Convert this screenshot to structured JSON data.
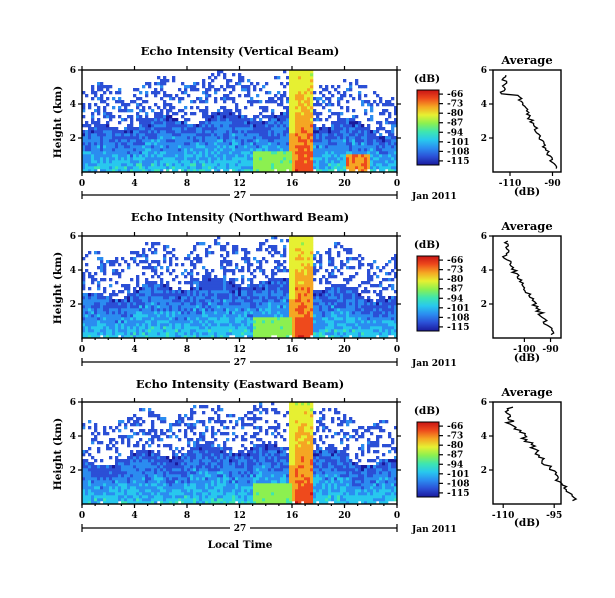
{
  "chart_data": {
    "type": "heatmap",
    "panels": [
      {
        "title": "Echo Intensity (Vertical Beam)",
        "xlabel": "",
        "profile_xticks": [
          "-110",
          "-90"
        ],
        "profile_xlim": [
          -118,
          -86
        ]
      },
      {
        "title": "Echo Intensity (Northward Beam)",
        "xlabel": "",
        "profile_xticks": [
          "-100",
          "-90"
        ],
        "profile_xlim": [
          -112,
          -86
        ]
      },
      {
        "title": "Echo Intensity (Eastward Beam)",
        "xlabel": "Local Time",
        "profile_xticks": [
          "-110",
          "-95"
        ],
        "profile_xlim": [
          -113,
          -93
        ]
      }
    ],
    "ylabel": "Height (km)",
    "ylim": [
      0,
      6
    ],
    "yticks": [
      "2",
      "4",
      "6"
    ],
    "xlim": [
      0,
      24
    ],
    "xticks": [
      "0",
      "4",
      "8",
      "12",
      "16",
      "20",
      "0"
    ],
    "day_label": "27",
    "month_label": "Jan 2011",
    "colorbar": {
      "unit": "(dB)",
      "ticks": [
        "-66",
        "-73",
        "-80",
        "-87",
        "-94",
        "-101",
        "-108",
        "-115"
      ],
      "range": [
        -118,
        -63
      ],
      "colors": [
        "#1a1a9c",
        "#2b4fd6",
        "#2b8cf0",
        "#28c8ee",
        "#3ee6b0",
        "#8cf050",
        "#e6f032",
        "#f5a623",
        "#ee4a1c",
        "#c81414"
      ]
    },
    "profile_title": "Average",
    "profile_xlabel": "(dB)",
    "profile_yticks": [
      "2",
      "4",
      "6"
    ]
  }
}
